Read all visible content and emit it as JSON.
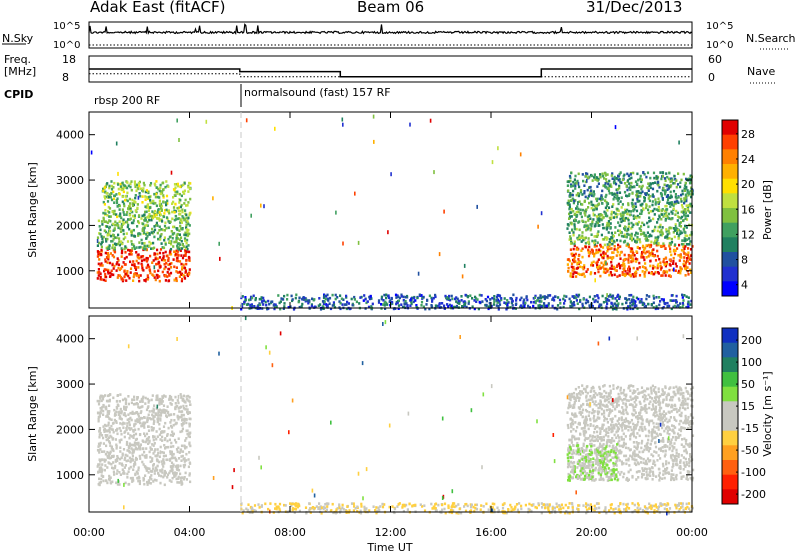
{
  "header": {
    "title": "Adak East (fitACF)",
    "beam": "Beam 06",
    "date": "31/Dec/2013"
  },
  "colors": {
    "line": "#000000",
    "dashed_line": "#c8c8c8",
    "mode_divider": "#c8c8c8"
  },
  "noise_panel": {
    "left_label": "N.Sky",
    "left_ticks": [
      "10^5",
      "10^0"
    ],
    "right_label": "N.Search",
    "right_ticks": [
      "10^5",
      "10^0"
    ]
  },
  "freq_panel": {
    "left_label_line1": "Freq.",
    "left_label_line2": "[MHz]",
    "left_ticks": [
      "18",
      "8"
    ],
    "right_label": "Nave",
    "right_ticks": [
      "60",
      "0"
    ]
  },
  "cpid": {
    "label": "CPID",
    "modes": [
      {
        "text": "rbsp 200 RF",
        "start_hour": 0
      },
      {
        "text": "normalsound (fast) 157 RF",
        "start_hour": 6
      }
    ]
  },
  "power_panel": {
    "ylabel": "Slant Range [km]",
    "yticks": [
      "1000",
      "2000",
      "3000",
      "4000"
    ],
    "colorbar_label": "Power [dB]",
    "colorbar_ticks": [
      "28",
      "24",
      "20",
      "16",
      "12",
      "8",
      "4"
    ],
    "colorbar_colors": [
      "#e00000",
      "#ff4000",
      "#ff8000",
      "#ffb000",
      "#ffe000",
      "#c0e040",
      "#80c040",
      "#40a060",
      "#208060",
      "#2050a0",
      "#2030d0",
      "#0000ff"
    ]
  },
  "velocity_panel": {
    "ylabel": "Slant Range [km]",
    "yticks": [
      "1000",
      "2000",
      "3000",
      "4000"
    ],
    "colorbar_label": "Velocity [m s⁻¹]",
    "colorbar_ticks": [
      "200",
      "100",
      "50",
      "15",
      "-15",
      "-50",
      "-100",
      "-200"
    ],
    "colorbar_colors": [
      "#1030c0",
      "#2060a0",
      "#208060",
      "#40c040",
      "#80e040",
      "#c8c8c0",
      "#c8c8c0",
      "#ffd040",
      "#ffa020",
      "#ff6010",
      "#ff2000",
      "#e00000"
    ]
  },
  "xaxis": {
    "ticks": [
      "00:00",
      "04:00",
      "08:00",
      "12:00",
      "16:00",
      "20:00",
      "00:00"
    ],
    "label": "Time UT"
  },
  "chart_data": [
    {
      "type": "line",
      "panel": "noise",
      "scale": "log",
      "series": [
        {
          "name": "N.Sky",
          "x": [
            0,
            4,
            8,
            12,
            16,
            20,
            24
          ],
          "y": [
            1000,
            1000,
            1000,
            1000,
            1000,
            1000,
            1000
          ]
        },
        {
          "name": "N.Search",
          "x": [
            0,
            24
          ],
          "y": [
            1,
            1
          ]
        }
      ]
    },
    {
      "type": "line",
      "panel": "frequency",
      "series": [
        {
          "name": "Freq.",
          "x": [
            0,
            6,
            6,
            10,
            10,
            18,
            18,
            24
          ],
          "y": [
            13,
            13,
            12,
            12,
            10,
            10,
            13,
            13
          ]
        },
        {
          "name": "Nave",
          "x": [
            0,
            6,
            6,
            24
          ],
          "y": [
            19,
            19,
            12,
            12
          ]
        }
      ]
    },
    {
      "type": "heatmap",
      "panel": "power",
      "x_range": [
        0,
        24
      ],
      "y_range": [
        180,
        4500
      ],
      "z_range": [
        0,
        30
      ],
      "regions": [
        {
          "x": [
            0.3,
            4.0
          ],
          "y": [
            800,
            1500
          ],
          "value": 28
        },
        {
          "x": [
            0.3,
            4.0
          ],
          "y": [
            1500,
            2200
          ],
          "value": 12
        },
        {
          "x": [
            0.5,
            4.0
          ],
          "y": [
            2200,
            3000
          ],
          "value": 14
        },
        {
          "x": [
            19.0,
            24.0
          ],
          "y": [
            900,
            1600
          ],
          "value": 26
        },
        {
          "x": [
            19.0,
            24.0
          ],
          "y": [
            1600,
            2500
          ],
          "value": 12
        },
        {
          "x": [
            19.0,
            24.0
          ],
          "y": [
            2500,
            3200
          ],
          "value": 10
        },
        {
          "x": [
            6.0,
            24.0
          ],
          "y": [
            180,
            500
          ],
          "value": 6
        }
      ]
    },
    {
      "type": "heatmap",
      "panel": "velocity",
      "x_range": [
        0,
        24
      ],
      "y_range": [
        180,
        4500
      ],
      "z_range": [
        -200,
        200
      ],
      "regions": [
        {
          "x": [
            0.3,
            4.0
          ],
          "y": [
            800,
            2800
          ],
          "value": 0
        },
        {
          "x": [
            19.0,
            24.0
          ],
          "y": [
            900,
            3000
          ],
          "value": 0
        },
        {
          "x": [
            19.0,
            21.0
          ],
          "y": [
            900,
            1700
          ],
          "value": 40
        },
        {
          "x": [
            6.0,
            24.0
          ],
          "y": [
            180,
            400
          ],
          "value": -40
        }
      ]
    }
  ]
}
